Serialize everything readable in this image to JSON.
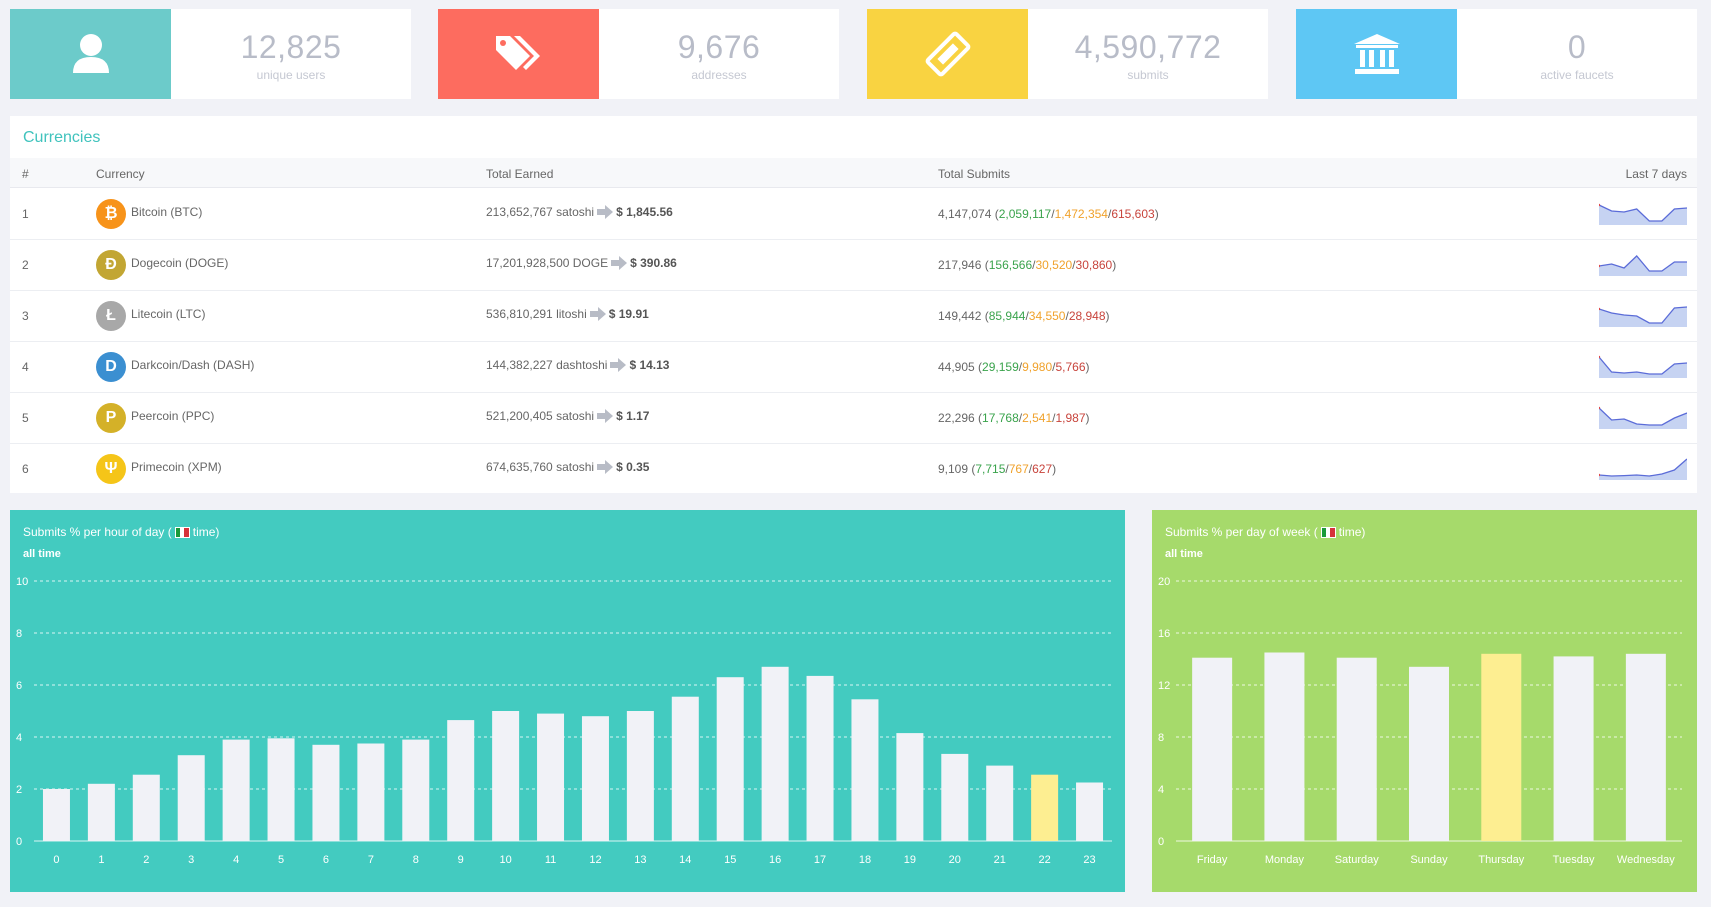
{
  "stats": [
    {
      "value": "12,825",
      "label": "unique users",
      "icon": "user-icon",
      "color": "#6ccbca"
    },
    {
      "value": "9,676",
      "label": "addresses",
      "icon": "tags-icon",
      "color": "#fd6c5f"
    },
    {
      "value": "4,590,772",
      "label": "submits",
      "icon": "ticket-icon",
      "color": "#f9d341"
    },
    {
      "value": "0",
      "label": "active faucets",
      "icon": "bank-icon",
      "color": "#5ec7f4"
    }
  ],
  "currencies": {
    "title": "Currencies",
    "headers": {
      "num": "#",
      "currency": "Currency",
      "earned": "Total Earned",
      "submits": "Total Submits",
      "last7": "Last 7 days"
    },
    "rows": [
      {
        "num": "1",
        "name": "Bitcoin (BTC)",
        "icon": "bitcoin-icon",
        "color": "#f7931a",
        "glyph": "₿",
        "earned": "213,652,767 satoshi",
        "usd": "$ 1,845.56",
        "total": "4,147,074",
        "green": "2,059,117",
        "orange": "1,472,354",
        "red": "615,603",
        "spark": [
          0.9,
          0.6,
          0.55,
          0.7,
          0.1,
          0.1,
          0.7,
          0.75
        ]
      },
      {
        "num": "2",
        "name": "Dogecoin (DOGE)",
        "icon": "dogecoin-icon",
        "color": "#c2a633",
        "glyph": "Ð",
        "earned": "17,201,928,500 DOGE",
        "usd": "$ 390.86",
        "total": "217,946",
        "green": "156,566",
        "orange": "30,520",
        "red": "30,860",
        "spark": [
          0.4,
          0.5,
          0.3,
          0.9,
          0.15,
          0.15,
          0.6,
          0.6
        ]
      },
      {
        "num": "3",
        "name": "Litecoin (LTC)",
        "icon": "litecoin-icon",
        "color": "#a8a8a8",
        "glyph": "Ł",
        "earned": "536,810,291 litoshi",
        "usd": "$ 19.91",
        "total": "149,442",
        "green": "85,944",
        "orange": "34,550",
        "red": "28,948",
        "spark": [
          0.8,
          0.6,
          0.5,
          0.45,
          0.1,
          0.1,
          0.85,
          0.9
        ]
      },
      {
        "num": "4",
        "name": "Darkcoin/Dash (DASH)",
        "icon": "dash-icon",
        "color": "#3b8fd1",
        "glyph": "D",
        "earned": "144,382,227 dashtoshi",
        "usd": "$ 14.13",
        "total": "44,905",
        "green": "29,159",
        "orange": "9,980",
        "red": "5,766",
        "spark": [
          0.95,
          0.2,
          0.15,
          0.2,
          0.1,
          0.1,
          0.6,
          0.65
        ]
      },
      {
        "num": "5",
        "name": "Peercoin (PPC)",
        "icon": "peercoin-icon",
        "color": "#d4b128",
        "glyph": "P",
        "earned": "521,200,405 satoshi",
        "usd": "$ 1.17",
        "total": "22,296",
        "green": "17,768",
        "orange": "2,541",
        "red": "1,987",
        "spark": [
          0.95,
          0.35,
          0.4,
          0.15,
          0.1,
          0.1,
          0.45,
          0.7
        ]
      },
      {
        "num": "6",
        "name": "Primecoin (XPM)",
        "icon": "primecoin-icon",
        "color": "#f5c518",
        "glyph": "Ψ",
        "earned": "674,635,760 satoshi",
        "usd": "$ 0.35",
        "total": "9,109",
        "green": "7,715",
        "orange": "767",
        "red": "627",
        "spark": [
          0.15,
          0.1,
          0.12,
          0.15,
          0.1,
          0.2,
          0.4,
          0.95
        ]
      }
    ]
  },
  "charts": {
    "hourly": {
      "title": "Submits % per hour of day (",
      "title_end": " time)",
      "subtitle": "all time",
      "bg": "#43cbc0",
      "highlight_color": "#fdee91"
    },
    "weekly": {
      "title": "Submits % per day of week (",
      "title_end": " time)",
      "subtitle": "all time",
      "bg": "#a6da6b",
      "highlight_color": "#fdee91"
    }
  },
  "chart_data": [
    {
      "type": "bar",
      "title": "Submits % per hour of day ( time)",
      "categories": [
        "0",
        "1",
        "2",
        "3",
        "4",
        "5",
        "6",
        "7",
        "8",
        "9",
        "10",
        "11",
        "12",
        "13",
        "14",
        "15",
        "16",
        "17",
        "18",
        "19",
        "20",
        "21",
        "22",
        "23"
      ],
      "values": [
        2.0,
        2.2,
        2.55,
        3.3,
        3.9,
        3.95,
        3.7,
        3.75,
        3.9,
        4.65,
        5.0,
        4.9,
        4.8,
        5.0,
        5.55,
        6.3,
        6.7,
        6.35,
        5.45,
        4.15,
        3.35,
        2.9,
        2.55,
        2.25
      ],
      "highlight_index": 22,
      "yticks": [
        0,
        2,
        4,
        6,
        8,
        10
      ],
      "ylim": [
        0,
        10
      ],
      "grid": true
    },
    {
      "type": "bar",
      "title": "Submits % per day of week ( time)",
      "categories": [
        "Friday",
        "Monday",
        "Saturday",
        "Sunday",
        "Thursday",
        "Tuesday",
        "Wednesday"
      ],
      "values": [
        14.1,
        14.5,
        14.1,
        13.4,
        14.4,
        14.2,
        14.4
      ],
      "highlight_index": 4,
      "yticks": [
        0,
        4,
        8,
        12,
        16,
        20
      ],
      "ylim": [
        0,
        20
      ],
      "grid": true
    }
  ]
}
